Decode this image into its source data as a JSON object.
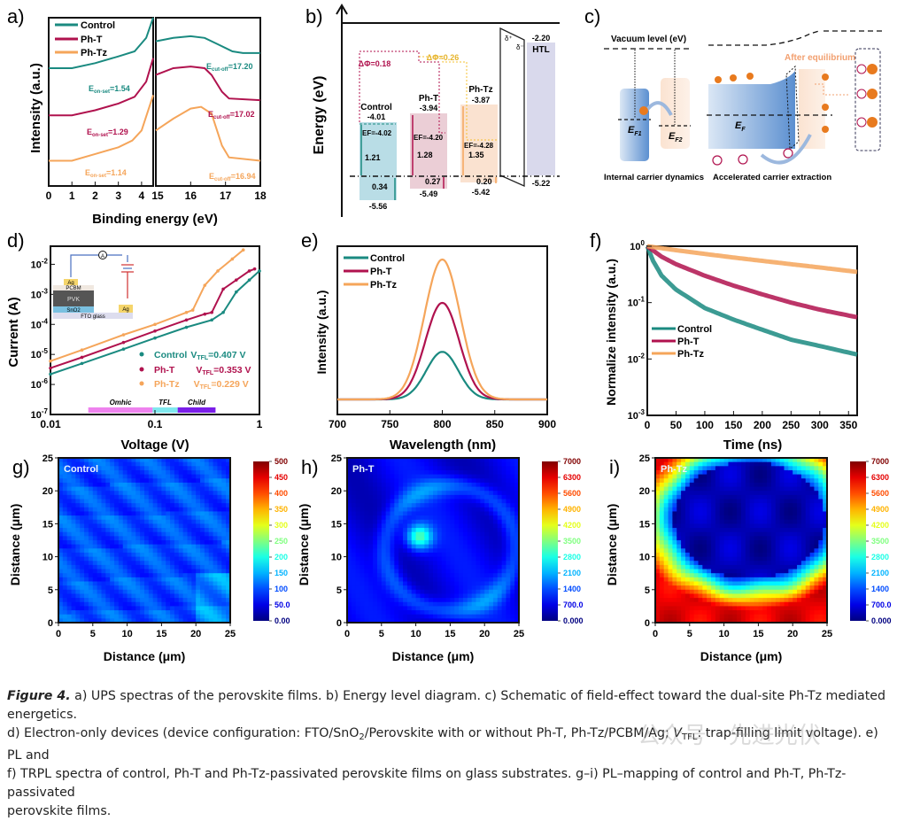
{
  "figure": {
    "caption_lead": "Figure 4.",
    "caption_lines": [
      " a) UPS spectras of the perovskite films. b) Energy level diagram. c) Schematic of field-effect toward the dual-site Ph-Tz mediated energetics.",
      "d) Electron-only devices (device configuration: FTO/SnO",
      "2",
      "/Perovskite with or without Ph-T, Ph-Tz/PCBM/Ag; ",
      "V",
      "TFL",
      ": trap-filling limit voltage). e) PL and",
      "f) TRPL spectra of control, Ph-T and Ph-Tz-passivated perovskite films on glass substrates. g–i) PL–mapping of control and Ph-T, Ph-Tz-passivated",
      "perovskite films."
    ],
    "watermark": "公众号 · 先进光伏"
  },
  "colors": {
    "control": "#1a8a80",
    "pht": "#b0124e",
    "phtz": "#f5a55a"
  },
  "chart_data": [
    {
      "id": "a",
      "type": "line",
      "panel_label": "a)",
      "xlabel": "Binding energy (eV)",
      "ylabel": "Intensity (a.u.)",
      "xlim_left": [
        0,
        4.5
      ],
      "xlim_right": [
        15,
        18
      ],
      "xticks_left": [
        "0",
        "1",
        "2",
        "3",
        "4"
      ],
      "xticks_right": [
        "15",
        "16",
        "17",
        "18"
      ],
      "legend": [
        "Control",
        "Ph-T",
        "Ph-Tz"
      ],
      "legend_position": "top-left",
      "annotations": [
        {
          "series": "Control",
          "label": "E",
          "sub": "on-set",
          "value": "=1.54"
        },
        {
          "series": "Ph-T",
          "label": "E",
          "sub": "on-set",
          "value": "=1.29"
        },
        {
          "series": "Ph-Tz",
          "label": "E",
          "sub": "on-set",
          "value": "=1.14"
        },
        {
          "series": "Control",
          "label": "E",
          "sub": "cut-off",
          "value": "=17.20"
        },
        {
          "series": "Ph-T",
          "label": "E",
          "sub": "cut-off",
          "value": "=17.02"
        },
        {
          "series": "Ph-Tz",
          "label": "E",
          "sub": "cut-off",
          "value": "=16.94"
        }
      ],
      "series": [
        {
          "name": "Control",
          "left_x": [
            0,
            1,
            2,
            3,
            3.7,
            4.2,
            4.5
          ],
          "left_y": [
            0.7,
            0.7,
            0.73,
            0.77,
            0.8,
            0.88,
            1.0
          ],
          "right_x": [
            15,
            15.5,
            16,
            16.4,
            16.8,
            17.2,
            17.5,
            18
          ],
          "right_y": [
            0.86,
            0.88,
            0.89,
            0.88,
            0.84,
            0.8,
            0.79,
            0.79
          ]
        },
        {
          "name": "Ph-T",
          "left_x": [
            0,
            1,
            2,
            3,
            3.7,
            4.2,
            4.5
          ],
          "left_y": [
            0.42,
            0.42,
            0.45,
            0.49,
            0.53,
            0.62,
            0.76
          ],
          "right_x": [
            15,
            15.5,
            16,
            16.4,
            16.6,
            16.9,
            17.1,
            18
          ],
          "right_y": [
            0.66,
            0.7,
            0.71,
            0.7,
            0.66,
            0.56,
            0.52,
            0.51
          ]
        },
        {
          "name": "Ph-Tz",
          "left_x": [
            0,
            1,
            2,
            3,
            3.6,
            4.0,
            4.5
          ],
          "left_y": [
            0.15,
            0.15,
            0.19,
            0.23,
            0.27,
            0.33,
            0.54
          ],
          "right_x": [
            15,
            15.5,
            16,
            16.3,
            16.6,
            16.9,
            17.1,
            18
          ],
          "right_y": [
            0.33,
            0.4,
            0.46,
            0.47,
            0.43,
            0.24,
            0.17,
            0.15
          ]
        }
      ]
    },
    {
      "id": "b",
      "type": "diagram",
      "panel_label": "b)",
      "ylabel": "Energy (eV)",
      "levels": [
        {
          "name": "Control",
          "cbm": "-4.01",
          "ef": "EF=-4.02",
          "gap1": "1.21",
          "gap2": "0.34",
          "vbm": "-5.56"
        },
        {
          "name": "Ph-T",
          "cbm": "-3.94",
          "ef": "EF=-4.20",
          "gap1": "1.28",
          "gap2": "0.27",
          "vbm": "-5.49"
        },
        {
          "name": "Ph-Tz",
          "cbm": "-3.87",
          "ef": "EF=-4.28",
          "gap1": "1.35",
          "gap2": "0.20",
          "vbm": "-5.42"
        }
      ],
      "htl": {
        "name": "HTL",
        "top": "-2.20",
        "bottom": "-5.22"
      },
      "delta_phi": [
        {
          "label": "ΔΦ=0.18",
          "series": "Ph-T"
        },
        {
          "label": "ΔΦ=0.26",
          "series": "Ph-Tz"
        }
      ],
      "dipole": [
        "δ⁺",
        "δ⁻"
      ]
    },
    {
      "id": "d",
      "type": "scatter",
      "panel_label": "d)",
      "xlabel": "Voltage (V)",
      "ylabel": "Current (A)",
      "xscale": "log",
      "yscale": "log",
      "xlim": [
        0.01,
        1
      ],
      "ylim": [
        1e-07,
        0.04
      ],
      "xticks": [
        "0.01",
        "0.1",
        "1"
      ],
      "yticks": [
        "10-7",
        "10-6",
        "10-5",
        "10-4",
        "10-3",
        "10-2"
      ],
      "legend": [
        {
          "name": "Control",
          "vtfl_label": "V",
          "sub": "TFL",
          "value": "=0.407 V"
        },
        {
          "name": "Ph-T",
          "vtfl_label": "V",
          "sub": "TFL",
          "value": "=0.353 V"
        },
        {
          "name": "Ph-Tz",
          "vtfl_label": "V",
          "sub": "TFL",
          "value": "=0.229 V"
        }
      ],
      "regions": [
        {
          "label": "Omhic",
          "color": "#ee82ee"
        },
        {
          "label": "TFL",
          "color": "#7fe8ee"
        },
        {
          "label": "Child",
          "color": "#7a1ee8"
        }
      ],
      "inset_layers": [
        "Ag",
        "PCBM",
        "PVK",
        "SnO2",
        "FTO glass",
        "Ag"
      ],
      "inset_meter": "A",
      "series": [
        {
          "name": "Control",
          "x": [
            0.01,
            0.02,
            0.05,
            0.1,
            0.2,
            0.35,
            0.45,
            0.6,
            0.8,
            1.0
          ],
          "y": [
            2.2e-06,
            5e-06,
            1.5e-05,
            3.5e-05,
            8e-05,
            0.00014,
            0.00025,
            0.0012,
            0.003,
            0.006
          ]
        },
        {
          "name": "Ph-T",
          "x": [
            0.01,
            0.02,
            0.05,
            0.1,
            0.2,
            0.3,
            0.35,
            0.45,
            0.6,
            0.8,
            0.9
          ],
          "y": [
            3.5e-06,
            8e-06,
            2.5e-05,
            6e-05,
            0.00014,
            0.00022,
            0.00025,
            0.0015,
            0.003,
            0.006,
            0.007
          ]
        },
        {
          "name": "Ph-Tz",
          "x": [
            0.01,
            0.02,
            0.05,
            0.1,
            0.2,
            0.23,
            0.3,
            0.4,
            0.55,
            0.7
          ],
          "y": [
            6e-06,
            1.4e-05,
            4.5e-05,
            0.0001,
            0.00025,
            0.0003,
            0.002,
            0.006,
            0.015,
            0.03
          ]
        }
      ]
    },
    {
      "id": "e",
      "type": "line",
      "panel_label": "e)",
      "xlabel": "Wavelength (nm)",
      "ylabel": "Intensity (a.u.)",
      "xlim": [
        700,
        900
      ],
      "xticks": [
        "700",
        "750",
        "800",
        "850",
        "900"
      ],
      "legend": [
        "Control",
        "Ph-T",
        "Ph-Tz"
      ],
      "legend_position": "top-left",
      "series": [
        {
          "name": "Control",
          "peak_nm": 800,
          "fwhm_nm": 36,
          "peak": 0.34
        },
        {
          "name": "Ph-T",
          "peak_nm": 800,
          "fwhm_nm": 38,
          "peak": 0.69
        },
        {
          "name": "Ph-Tz",
          "peak_nm": 800,
          "fwhm_nm": 40,
          "peak": 1.0
        }
      ]
    },
    {
      "id": "f",
      "type": "scatter",
      "panel_label": "f)",
      "xlabel": "Time (ns)",
      "ylabel": "Normalize intensity (a.u.)",
      "yscale": "log",
      "xlim": [
        0,
        365
      ],
      "ylim": [
        0.001,
        1
      ],
      "xticks": [
        "0",
        "50",
        "100",
        "150",
        "200",
        "250",
        "300",
        "350"
      ],
      "yticks": [
        "10-3",
        "10-2",
        "10-1",
        "100"
      ],
      "legend": [
        "Control",
        "Ph-T",
        "Ph-Tz"
      ],
      "legend_position": "center-left",
      "series": [
        {
          "name": "Control",
          "x": [
            0,
            10,
            25,
            50,
            100,
            150,
            200,
            250,
            300,
            365
          ],
          "y": [
            1,
            0.55,
            0.3,
            0.17,
            0.08,
            0.05,
            0.033,
            0.022,
            0.017,
            0.012
          ]
        },
        {
          "name": "Ph-T",
          "x": [
            0,
            25,
            50,
            100,
            150,
            200,
            250,
            300,
            365
          ],
          "y": [
            1,
            0.65,
            0.48,
            0.3,
            0.2,
            0.14,
            0.1,
            0.075,
            0.055
          ]
        },
        {
          "name": "Ph-Tz",
          "x": [
            0,
            50,
            100,
            150,
            200,
            250,
            300,
            365
          ],
          "y": [
            1,
            0.85,
            0.73,
            0.63,
            0.55,
            0.48,
            0.42,
            0.35
          ]
        }
      ]
    },
    {
      "id": "g",
      "type": "heatmap",
      "panel_label": "g)",
      "title": "Control",
      "xlabel": "Distance (μm)",
      "ylabel": "Distance (μm)",
      "xlim": [
        0,
        25
      ],
      "ylim": [
        0,
        25
      ],
      "ticks": [
        "0",
        "5",
        "10",
        "15",
        "20",
        "25"
      ],
      "colorbar": [
        "500",
        "450",
        "400",
        "350",
        "300",
        "250",
        "200",
        "150",
        "100",
        "50.0",
        "0.00"
      ],
      "colorbar_range": [
        0,
        500
      ],
      "typical_value": 90
    },
    {
      "id": "h",
      "type": "heatmap",
      "panel_label": "h)",
      "title": "Ph-T",
      "xlabel": "Distance (μm)",
      "ylabel": "Distance (μm)",
      "xlim": [
        0,
        25
      ],
      "ylim": [
        0,
        25
      ],
      "ticks": [
        "0",
        "5",
        "10",
        "15",
        "20",
        "25"
      ],
      "colorbar": [
        "7000",
        "6300",
        "5600",
        "4900",
        "4200",
        "3500",
        "2800",
        "2100",
        "1400",
        "700.0",
        "0.000"
      ],
      "colorbar_range": [
        0,
        7000
      ],
      "typical_value": 800
    },
    {
      "id": "i",
      "type": "heatmap",
      "panel_label": "i)",
      "title": "Ph-Tz",
      "xlabel": "Distance (μm)",
      "ylabel": "Distance (μm)",
      "xlim": [
        0,
        25
      ],
      "ylim": [
        0,
        25
      ],
      "ticks": [
        "0",
        "5",
        "10",
        "15",
        "20",
        "25"
      ],
      "colorbar": [
        "7000",
        "6300",
        "5600",
        "4900",
        "4200",
        "3500",
        "2800",
        "2100",
        "1400",
        "700.0",
        "0.000"
      ],
      "colorbar_range": [
        0,
        7000
      ],
      "typical_value": 500
    }
  ],
  "schematic": {
    "panel_label": "c)",
    "vacuum_label": "Vacuum level (eV)",
    "ef1": "E",
    "ef1_sub": "F1",
    "ef2": "E",
    "ef2_sub": "F2",
    "ef": "E",
    "ef_sub": "F",
    "after_eq": "After equilibrium",
    "caption_left": "Internal carrier dynamics",
    "caption_right": "Accelerated carrier extraction",
    "electron": "e",
    "hole": "h+"
  }
}
